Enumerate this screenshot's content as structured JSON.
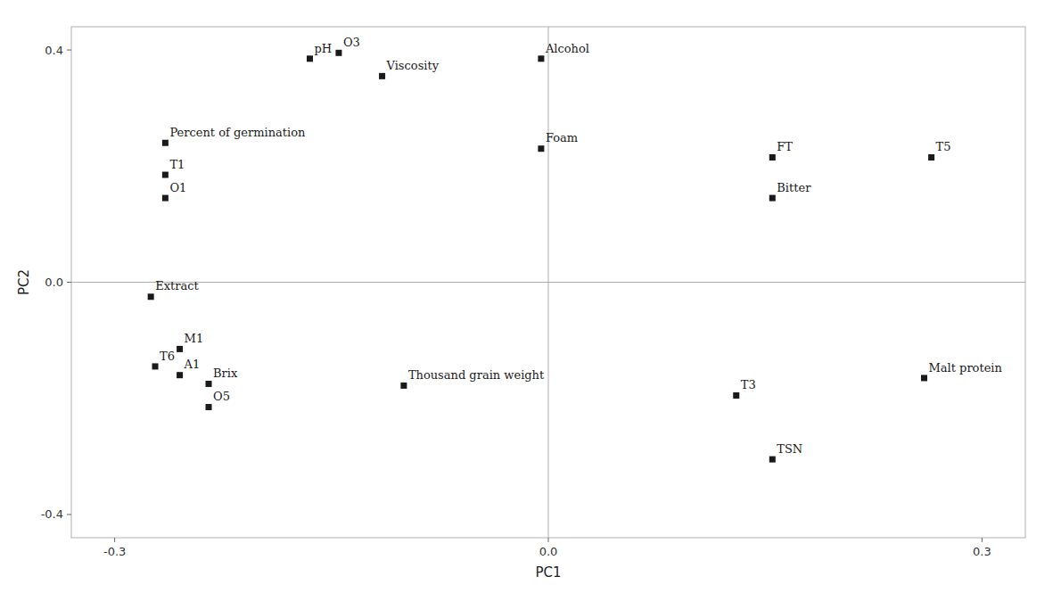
{
  "chart_data": {
    "type": "scatter",
    "x": [
      -0.145,
      -0.165,
      -0.115,
      -0.005,
      -0.265,
      -0.005,
      0.155,
      0.265,
      -0.265,
      -0.265,
      0.155,
      -0.275,
      -0.255,
      -0.272,
      -0.255,
      -0.235,
      -0.1,
      -0.235,
      0.13,
      0.26,
      0.155
    ],
    "values": [
      0.395,
      0.385,
      0.355,
      0.385,
      0.24,
      0.23,
      0.215,
      0.215,
      0.185,
      0.145,
      0.145,
      -0.025,
      -0.115,
      -0.145,
      -0.16,
      -0.175,
      -0.178,
      -0.215,
      -0.195,
      -0.165,
      -0.305
    ],
    "labels": [
      "O3",
      "pH",
      "Viscosity",
      "Alcohol",
      "Percent of germination",
      "Foam",
      "FT",
      "T5",
      "T1",
      "O1",
      "Bitter",
      "Extract",
      "M1",
      "T6",
      "A1",
      "Brix",
      "Thousand grain weight",
      "O5",
      "T3",
      "Malt protein",
      "TSN"
    ],
    "color": "#1a1a1a",
    "marker": "square",
    "xlabel": "PC1",
    "ylabel": "PC2",
    "xlim": [
      -0.33,
      0.33
    ],
    "ylim": [
      -0.44,
      0.44
    ],
    "xticks": [
      -0.3,
      {
        "value": 0.0,
        "label": "0.0"
      },
      0.3
    ],
    "yticks": [
      -0.4,
      {
        "value": 0.0,
        "label": "0.0"
      },
      0.4
    ],
    "grid": false
  }
}
